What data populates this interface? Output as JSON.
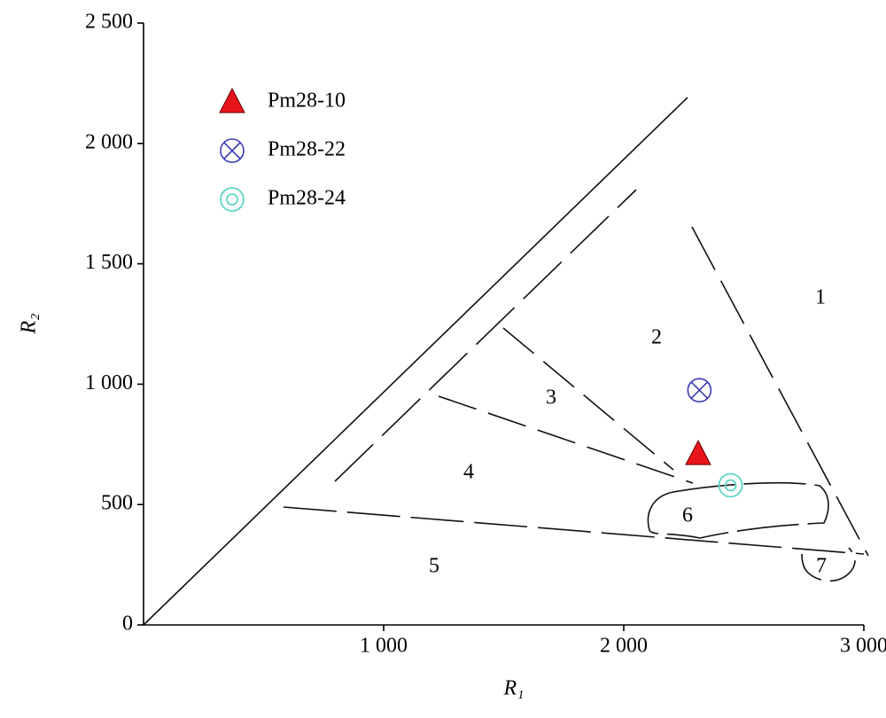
{
  "chart_data": {
    "type": "scatter",
    "x_label": "R₁",
    "y_label": "R₂",
    "xlim": [
      0,
      3000
    ],
    "ylim": [
      0,
      2500
    ],
    "xticks": [
      {
        "value": 1000,
        "label": "1 000"
      },
      {
        "value": 2000,
        "label": "2 000"
      },
      {
        "value": 3000,
        "label": "3 000"
      }
    ],
    "yticks": [
      0,
      500,
      {
        "value": 1000,
        "label": "1 000"
      },
      {
        "value": 1500,
        "label": "1 500"
      },
      {
        "value": 2000,
        "label": "2 000"
      },
      {
        "value": 2500,
        "label": "2 500"
      }
    ],
    "legend": "upper left",
    "series": [
      {
        "name": "Pm28-10",
        "color": "#e8141c",
        "marker": "triangle",
        "x": [
          2310
        ],
        "values": [
          710
        ]
      },
      {
        "name": "Pm28-22",
        "color": "#3a3ab8",
        "marker": "circle-x",
        "x": [
          2315
        ],
        "values": [
          975
        ]
      },
      {
        "name": "Pm28-24",
        "color": "#5fd6c6",
        "marker": "double-circle",
        "x": [
          2445
        ],
        "values": [
          580
        ]
      }
    ],
    "annotations": [
      "1",
      "2",
      "3",
      "4",
      "5",
      "6",
      "7"
    ]
  }
}
